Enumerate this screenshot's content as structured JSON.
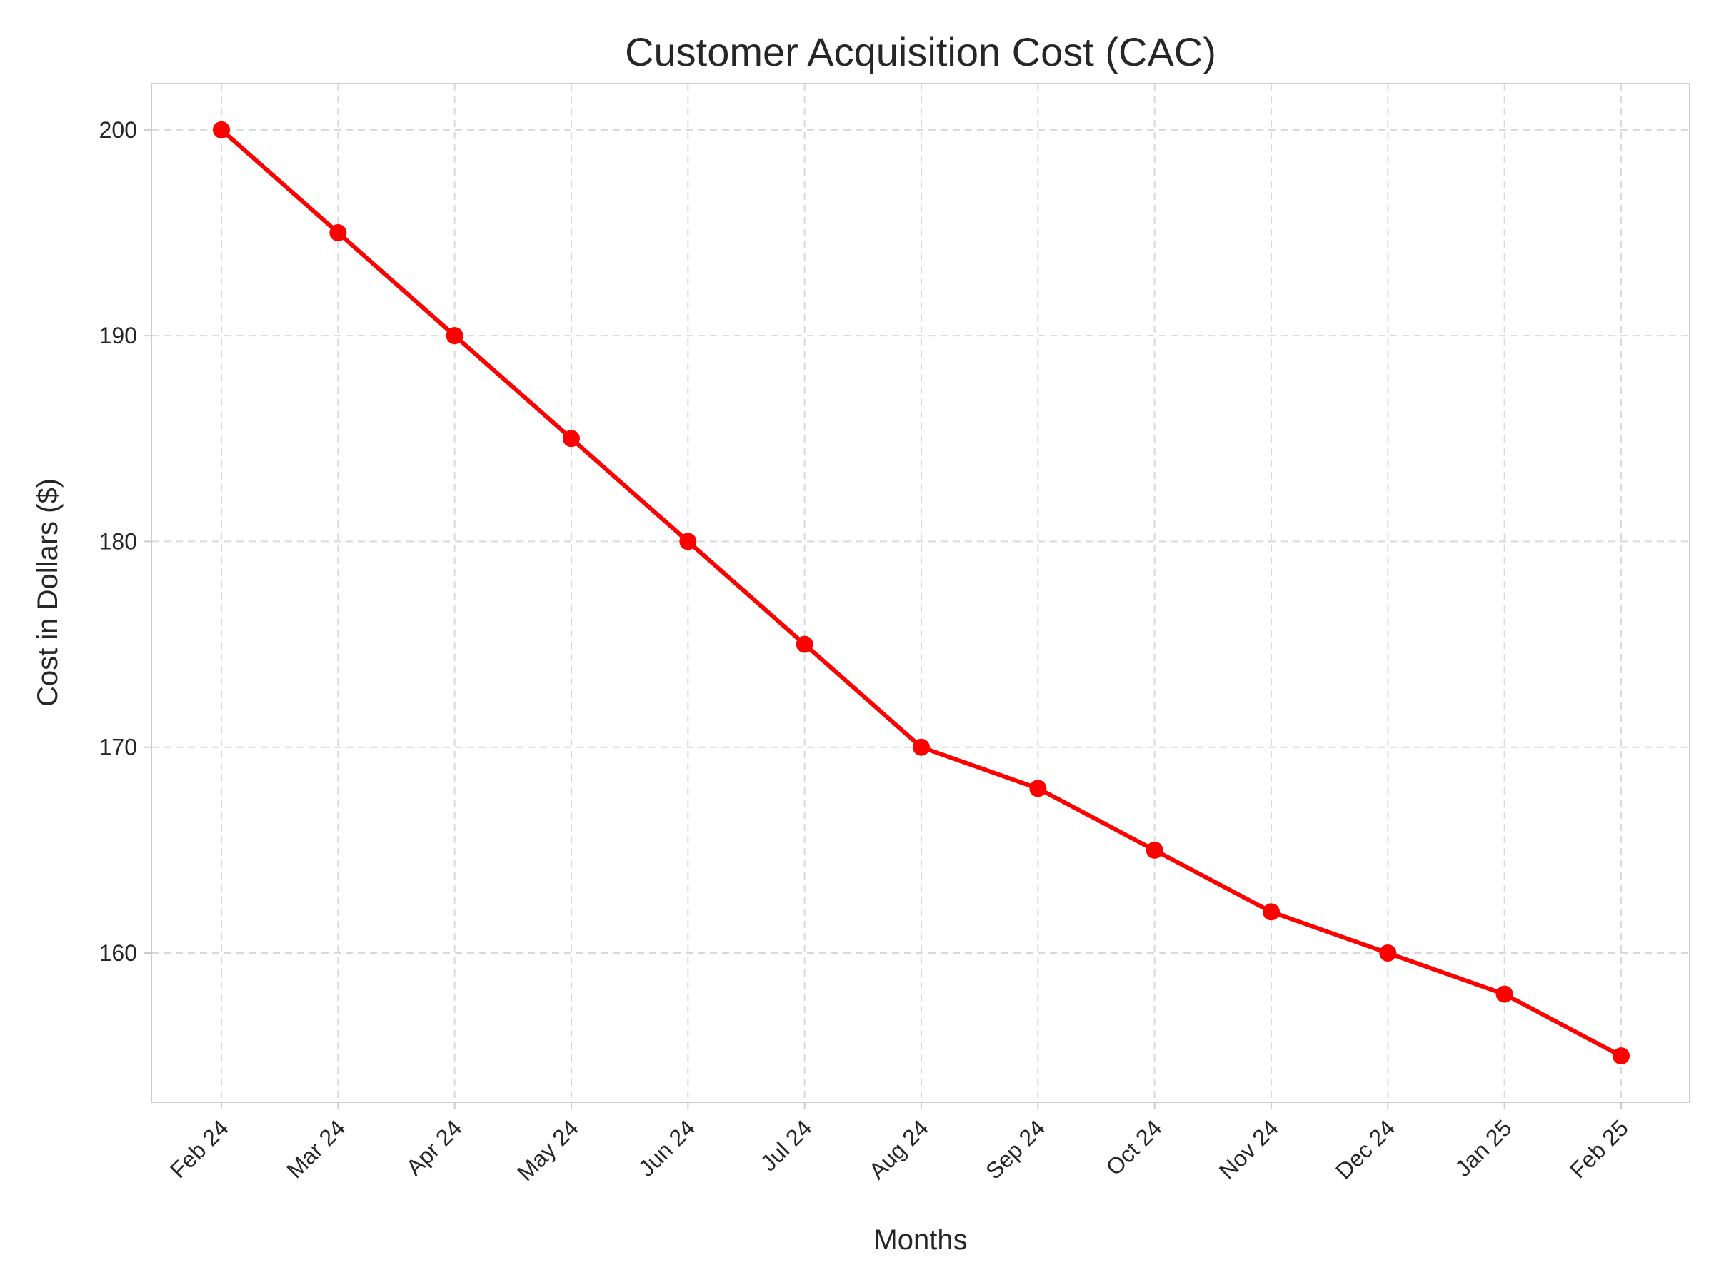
{
  "chart_data": {
    "type": "line",
    "title": "Customer Acquisition Cost (CAC)",
    "xlabel": "Months",
    "ylabel": "Cost in Dollars ($)",
    "categories": [
      "Feb 24",
      "Mar 24",
      "Apr 24",
      "May 24",
      "Jun 24",
      "Jul 24",
      "Aug 24",
      "Sep 24",
      "Oct 24",
      "Nov 24",
      "Dec 24",
      "Jan 25",
      "Feb 25"
    ],
    "series": [
      {
        "values": [
          200,
          195,
          190,
          185,
          180,
          175,
          170,
          168,
          165,
          162,
          160,
          158,
          155
        ],
        "color": "#ff0000"
      }
    ],
    "yticks": [
      160,
      170,
      180,
      190,
      200
    ],
    "ylim": [
      152.75,
      202.25
    ],
    "grid": true,
    "legend": "none"
  }
}
